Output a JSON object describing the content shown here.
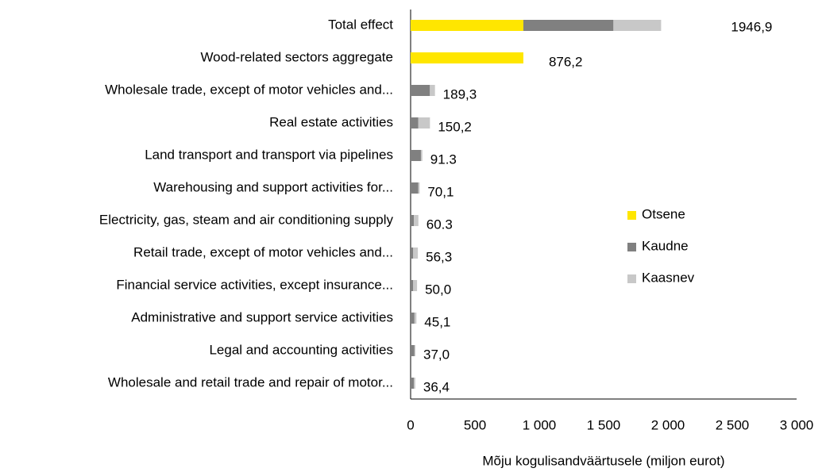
{
  "chart_data": {
    "type": "bar",
    "orientation": "horizontal",
    "stacked": true,
    "x_label": "Mõju kogulisandväärtusele (miljon eurot)",
    "categories": [
      "Total effect",
      "Wood-related sectors aggregate",
      "Wholesale trade, except of motor vehicles and...",
      "Real estate activities",
      "Land transport and transport via pipelines",
      "Warehousing and support activities for...",
      "Electricity, gas, steam and air conditioning supply",
      "Retail trade, except of motor vehicles and...",
      "Financial service activities, except insurance...",
      "Administrative and support service activities",
      "Legal and accounting activities",
      "Wholesale and retail trade and repair of motor..."
    ],
    "series": [
      {
        "name": "Otsene",
        "color": "#ffe600",
        "values": [
          876.2,
          876.2,
          0,
          0,
          0,
          0,
          0,
          0,
          0,
          0,
          0,
          0
        ]
      },
      {
        "name": "Kaudne",
        "color": "#808080",
        "values": [
          700,
          0,
          150,
          60,
          80,
          60,
          25,
          20,
          20,
          30,
          30,
          25
        ]
      },
      {
        "name": "Kaasnev",
        "color": "#c8c8c8",
        "values": [
          370.7,
          0,
          39.3,
          90.2,
          11.3,
          10.1,
          35.3,
          36.3,
          30,
          15.1,
          7,
          11.4
        ]
      }
    ],
    "totals": [
      1946.9,
      876.2,
      189.3,
      150.2,
      91.3,
      70.1,
      60.3,
      56.3,
      50.0,
      45.1,
      37.0,
      36.4
    ],
    "total_labels": [
      "1946,9",
      "876,2",
      "189,3",
      "150,2",
      "91.3",
      "70,1",
      "60.3",
      "56,3",
      "50,0",
      "45,1",
      "37,0",
      "36,4"
    ],
    "xlim": [
      0,
      3000
    ],
    "xticks": [
      0,
      500,
      {
        "value": 1000,
        "label": "1 000"
      },
      {
        "value": 1500,
        "label": "1 500"
      },
      {
        "value": 2000,
        "label": "2 000"
      },
      {
        "value": 2500,
        "label": "2 500"
      },
      {
        "value": 3000,
        "label": "3 000"
      }
    ],
    "legend": "right",
    "grid": false
  }
}
